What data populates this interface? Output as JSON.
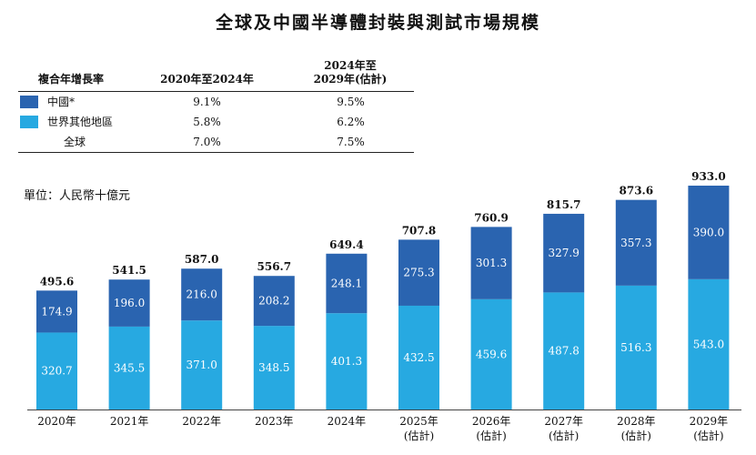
{
  "title": "全球及中國半導體封裝與測試市場規模",
  "cagr_table": {
    "header_label": "複合年增長率",
    "col1": "2020年至2024年",
    "col2_line1": "2024年至",
    "col2_line2": "2029年(估計)",
    "rows": [
      {
        "label": "中國*",
        "v1": "9.1%",
        "v2": "9.5%"
      },
      {
        "label": "世界其他地區",
        "v1": "5.8%",
        "v2": "6.2%"
      },
      {
        "label": "全球",
        "v1": "7.0%",
        "v2": "7.5%"
      }
    ]
  },
  "unit_label": "單位：人民幣十億元",
  "colors": {
    "china": "#2a64b0",
    "rest": "#27a9e1"
  },
  "chart_data": {
    "type": "bar",
    "stacked": true,
    "categories": [
      "2020年",
      "2021年",
      "2022年",
      "2023年",
      "2024年",
      "2025年",
      "2026年",
      "2027年",
      "2028年",
      "2029年"
    ],
    "estimate_note": "(估計)",
    "estimated": [
      false,
      false,
      false,
      false,
      false,
      true,
      true,
      true,
      true,
      true
    ],
    "series": [
      {
        "name": "世界其他地區",
        "values": [
          320.7,
          345.5,
          371.0,
          348.5,
          401.3,
          432.5,
          459.6,
          487.8,
          516.3,
          543.0
        ]
      },
      {
        "name": "中國*",
        "values": [
          174.9,
          196.0,
          216.0,
          208.2,
          248.1,
          275.3,
          301.3,
          327.9,
          357.3,
          390.0
        ]
      }
    ],
    "totals": [
      495.6,
      541.5,
      587.0,
      556.7,
      649.4,
      707.8,
      760.9,
      815.7,
      873.6,
      933.0
    ],
    "ylim": [
      0,
      933.0
    ]
  }
}
